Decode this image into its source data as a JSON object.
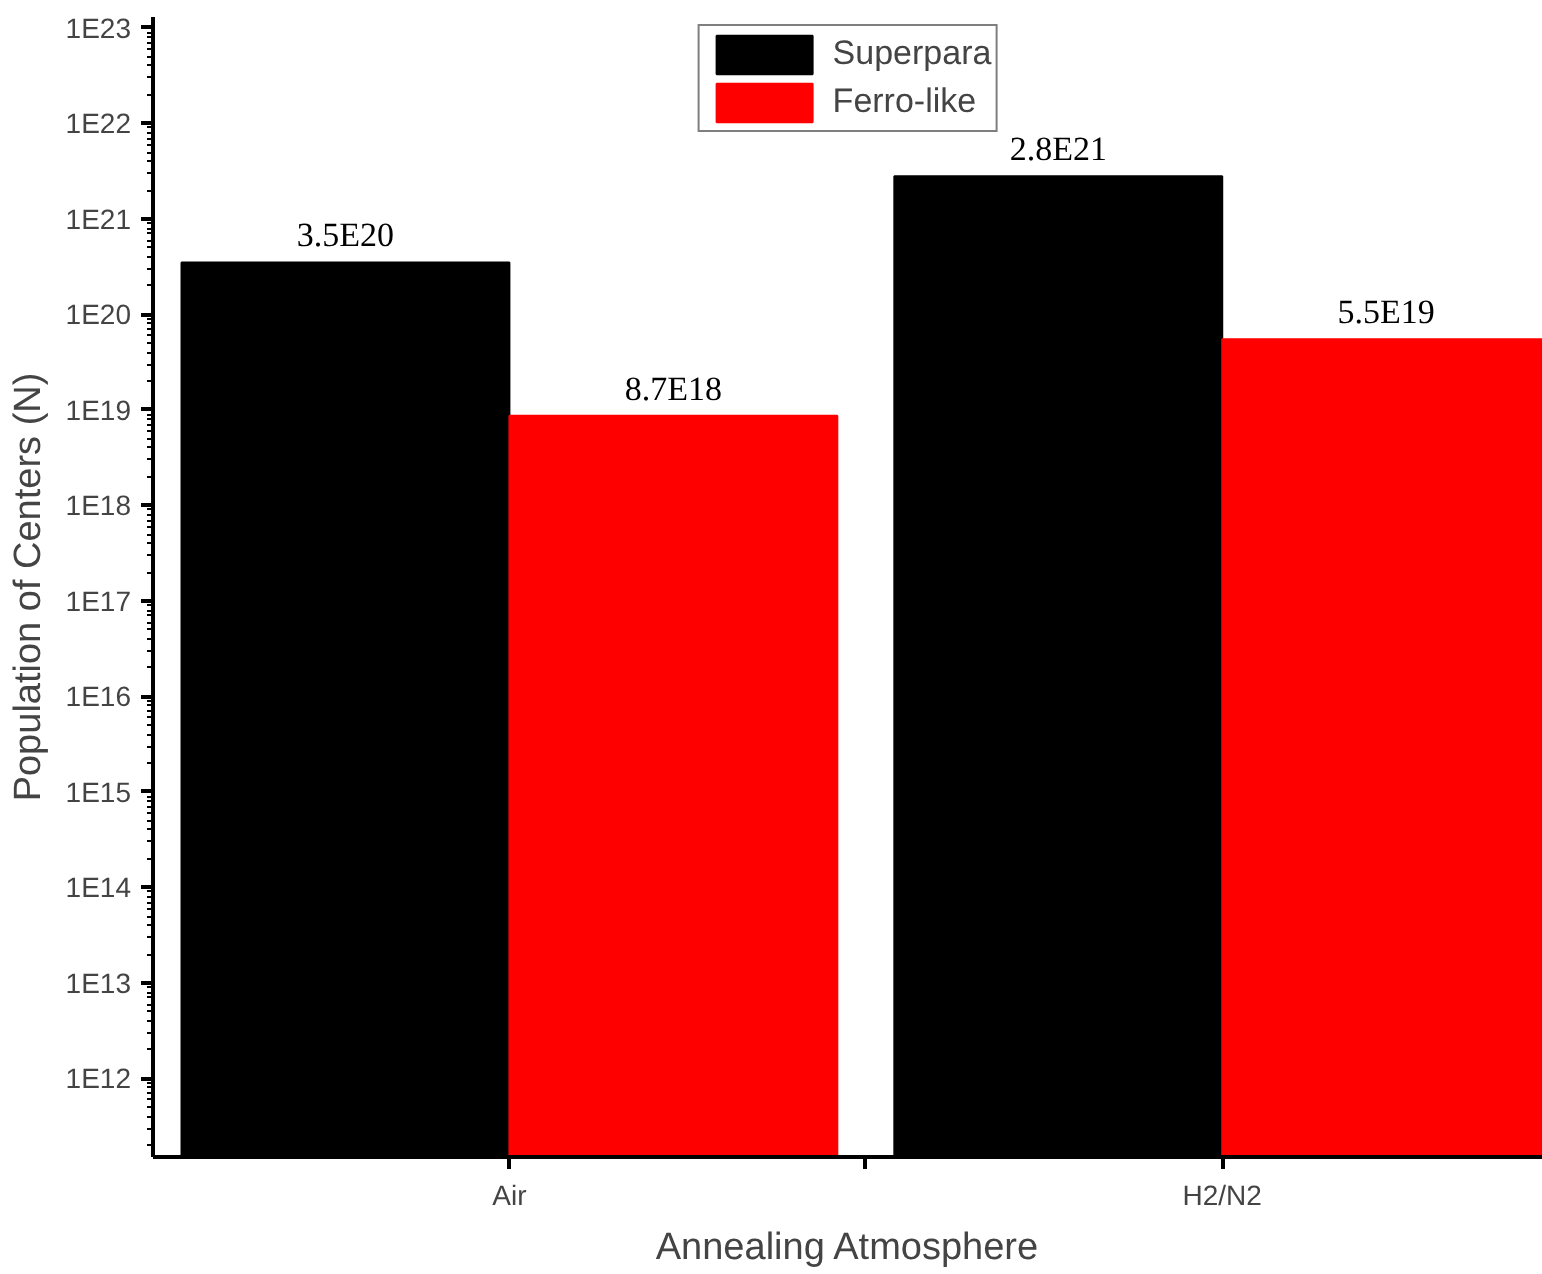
{
  "chart_data": {
    "type": "bar",
    "xlabel": "Annealing Atmosphere",
    "ylabel": "Population of Centers (N)",
    "categories": [
      "Air",
      "H2/N2"
    ],
    "series": [
      {
        "name": "Superpara",
        "color": "#000000",
        "values": [
          3.5e+20,
          2.8e+21
        ],
        "value_labels": [
          "3.5E20",
          "2.8E21"
        ]
      },
      {
        "name": "Ferro-like",
        "color": "#ff0000",
        "values": [
          8.7e+18,
          5.5e+19
        ],
        "value_labels": [
          "8.7E18",
          "5.5E19"
        ]
      }
    ],
    "log": "y",
    "ylim": [
      150000000000.0,
      1.3e+23
    ],
    "yticks": [
      {
        "value": 1000000000000.0,
        "label": "1E12"
      },
      {
        "value": 10000000000000.0,
        "label": "1E13"
      },
      {
        "value": 100000000000000.0,
        "label": "1E14"
      },
      {
        "value": 1000000000000000.0,
        "label": "1E15"
      },
      {
        "value": 1e+16,
        "label": "1E16"
      },
      {
        "value": 1e+17,
        "label": "1E17"
      },
      {
        "value": 1e+18,
        "label": "1E18"
      },
      {
        "value": 1e+19,
        "label": "1E19"
      },
      {
        "value": 1e+20,
        "label": "1E20"
      },
      {
        "value": 1e+21,
        "label": "1E21"
      },
      {
        "value": 1e+22,
        "label": "1E22"
      },
      {
        "value": 1e+23,
        "label": "1E23"
      }
    ],
    "grid": false,
    "legend": "top"
  }
}
